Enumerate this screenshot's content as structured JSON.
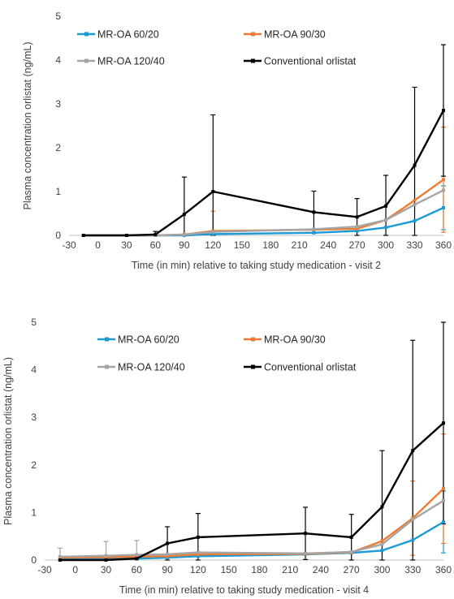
{
  "chart_data": [
    {
      "type": "line",
      "x": [
        -15,
        30,
        60,
        90,
        120,
        225,
        270,
        300,
        330,
        360
      ],
      "xlabel": "Time (in min) relative to taking study medication - visit 2",
      "ylabel": "Plasma concentration orlistat (ng/mL)",
      "xlim": [
        -30,
        360
      ],
      "ylim": [
        0,
        5
      ],
      "xticks": [
        "-30",
        "0",
        "30",
        "60",
        "90",
        "120",
        "150",
        "180",
        "210",
        "240",
        "270",
        "300",
        "330",
        "360"
      ],
      "yticks": [
        "0",
        "1",
        "2",
        "3",
        "4",
        "5"
      ],
      "grid": false,
      "legend": "top",
      "series": [
        {
          "name": "MR-OA 60/20",
          "color": "#1a9ad6",
          "values": [
            0,
            0,
            0,
            0,
            0.03,
            0.06,
            0.1,
            0.18,
            0.33,
            0.63
          ],
          "err": [
            0,
            0,
            0,
            0,
            0,
            0,
            0,
            0,
            0,
            0.5
          ]
        },
        {
          "name": "MR-OA 90/30",
          "color": "#ee7d31",
          "values": [
            0,
            0,
            0,
            0.02,
            0.1,
            0.13,
            0.15,
            0.35,
            0.8,
            1.27
          ],
          "err": [
            0,
            0,
            0,
            0,
            0.45,
            0,
            0,
            0,
            0,
            1.2
          ]
        },
        {
          "name": "MR-OA 120/40",
          "color": "#a5a5a5",
          "values": [
            0,
            0,
            0,
            0.02,
            0.08,
            0.14,
            0.2,
            0.35,
            0.7,
            1.03
          ],
          "err": [
            0,
            0,
            0,
            0,
            0,
            0,
            0,
            0,
            0,
            0
          ]
        },
        {
          "name": "Conventional orlistat",
          "color": "#000000",
          "values": [
            0,
            0,
            0.02,
            0.48,
            1.0,
            0.53,
            0.42,
            0.67,
            1.6,
            2.85
          ],
          "err": [
            0,
            0,
            0.07,
            0.85,
            1.75,
            0.48,
            0.42,
            0.7,
            1.78,
            1.5
          ]
        }
      ]
    },
    {
      "type": "line",
      "x": [
        -15,
        30,
        60,
        90,
        120,
        225,
        270,
        300,
        330,
        360
      ],
      "xlabel": "Time (in min) relative to taking study medication - visit 4",
      "ylabel": "Plasma concentration orlistat (ng/mL)",
      "xlim": [
        -30,
        360
      ],
      "ylim": [
        0,
        5
      ],
      "xticks": [
        "-30",
        "0",
        "30",
        "60",
        "90",
        "120",
        "150",
        "180",
        "210",
        "240",
        "270",
        "300",
        "330",
        "360"
      ],
      "yticks": [
        "0",
        "1",
        "2",
        "3",
        "4",
        "5"
      ],
      "grid": false,
      "legend": "top",
      "series": [
        {
          "name": "MR-OA 60/20",
          "color": "#1a9ad6",
          "values": [
            0.02,
            0.03,
            0.03,
            0.05,
            0.08,
            0.12,
            0.15,
            0.2,
            0.42,
            0.8
          ],
          "err": [
            0,
            0,
            0,
            0,
            0,
            0,
            0,
            0,
            0,
            0.65
          ]
        },
        {
          "name": "MR-OA 90/30",
          "color": "#ee7d31",
          "values": [
            0.05,
            0.06,
            0.07,
            0.08,
            0.12,
            0.13,
            0.16,
            0.4,
            0.88,
            1.5
          ],
          "err": [
            0,
            0,
            0,
            0,
            0,
            0,
            0,
            0,
            0.78,
            1.15
          ]
        },
        {
          "name": "MR-OA 120/40",
          "color": "#a5a5a5",
          "values": [
            0.07,
            0.09,
            0.11,
            0.12,
            0.16,
            0.14,
            0.17,
            0.33,
            0.85,
            1.25
          ],
          "err": [
            0.18,
            0.3,
            0.3,
            0,
            0,
            0,
            0,
            0,
            0,
            0
          ]
        },
        {
          "name": "Conventional orlistat",
          "color": "#000000",
          "values": [
            0,
            0,
            0.03,
            0.35,
            0.48,
            0.56,
            0.48,
            1.12,
            2.3,
            2.88
          ],
          "err": [
            0,
            0,
            0,
            0.35,
            0.5,
            0.55,
            0.48,
            1.18,
            2.32,
            2.12
          ]
        }
      ]
    }
  ]
}
